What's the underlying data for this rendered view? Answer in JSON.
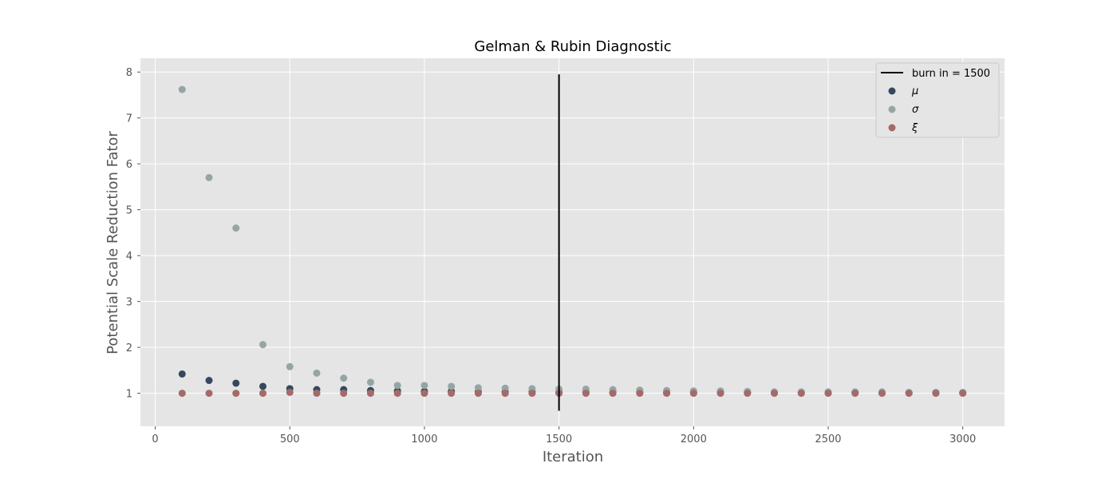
{
  "chart_data": {
    "type": "scatter",
    "title": "Gelman & Rubin Diagnostic",
    "xlabel": "Iteration",
    "ylabel": "Potential Scale Reduction Fator",
    "xlim": [
      -55,
      3155
    ],
    "ylim": [
      0.28,
      8.3
    ],
    "xticks": [
      0,
      500,
      1000,
      1500,
      2000,
      2500,
      3000
    ],
    "yticks": [
      1,
      2,
      3,
      4,
      5,
      6,
      7,
      8
    ],
    "grid": true,
    "legend_position": "top-right",
    "x": [
      100,
      200,
      300,
      400,
      500,
      600,
      700,
      800,
      900,
      1000,
      1100,
      1200,
      1300,
      1400,
      1500,
      1600,
      1700,
      1800,
      1900,
      2000,
      2100,
      2200,
      2300,
      2400,
      2500,
      2600,
      2700,
      2800,
      2900,
      3000
    ],
    "series": [
      {
        "name": "μ",
        "color": "#34495e",
        "values": [
          1.42,
          1.28,
          1.22,
          1.15,
          1.1,
          1.08,
          1.08,
          1.06,
          1.05,
          1.04,
          1.04,
          1.03,
          1.03,
          1.03,
          1.02,
          1.02,
          1.02,
          1.02,
          1.02,
          1.02,
          1.02,
          1.01,
          1.01,
          1.01,
          1.01,
          1.01,
          1.01,
          1.01,
          1.01,
          1.01
        ]
      },
      {
        "name": "σ",
        "color": "#95a5a6",
        "values": [
          7.62,
          5.7,
          4.6,
          2.06,
          1.58,
          1.44,
          1.33,
          1.24,
          1.17,
          1.17,
          1.15,
          1.12,
          1.11,
          1.1,
          1.09,
          1.09,
          1.08,
          1.07,
          1.06,
          1.05,
          1.05,
          1.04,
          1.03,
          1.03,
          1.03,
          1.03,
          1.03,
          1.02,
          1.02,
          1.02
        ]
      },
      {
        "name": "ξ",
        "color": "#a46a6a",
        "values": [
          1.0,
          1.0,
          1.0,
          1.0,
          1.02,
          1.0,
          1.0,
          1.0,
          1.0,
          1.0,
          1.0,
          1.0,
          1.0,
          1.0,
          1.0,
          1.0,
          1.0,
          1.0,
          1.0,
          1.0,
          1.0,
          1.0,
          1.0,
          1.0,
          1.0,
          1.0,
          1.0,
          1.0,
          1.0,
          1.0
        ]
      }
    ],
    "vline": {
      "label": "burn in = 1500",
      "x": 1500,
      "y_range": [
        0.62,
        7.95
      ],
      "color": "#000000"
    }
  },
  "colors": {
    "plot_background": "#e5e5e5",
    "grid": "#ffffff",
    "text": "#555555"
  }
}
